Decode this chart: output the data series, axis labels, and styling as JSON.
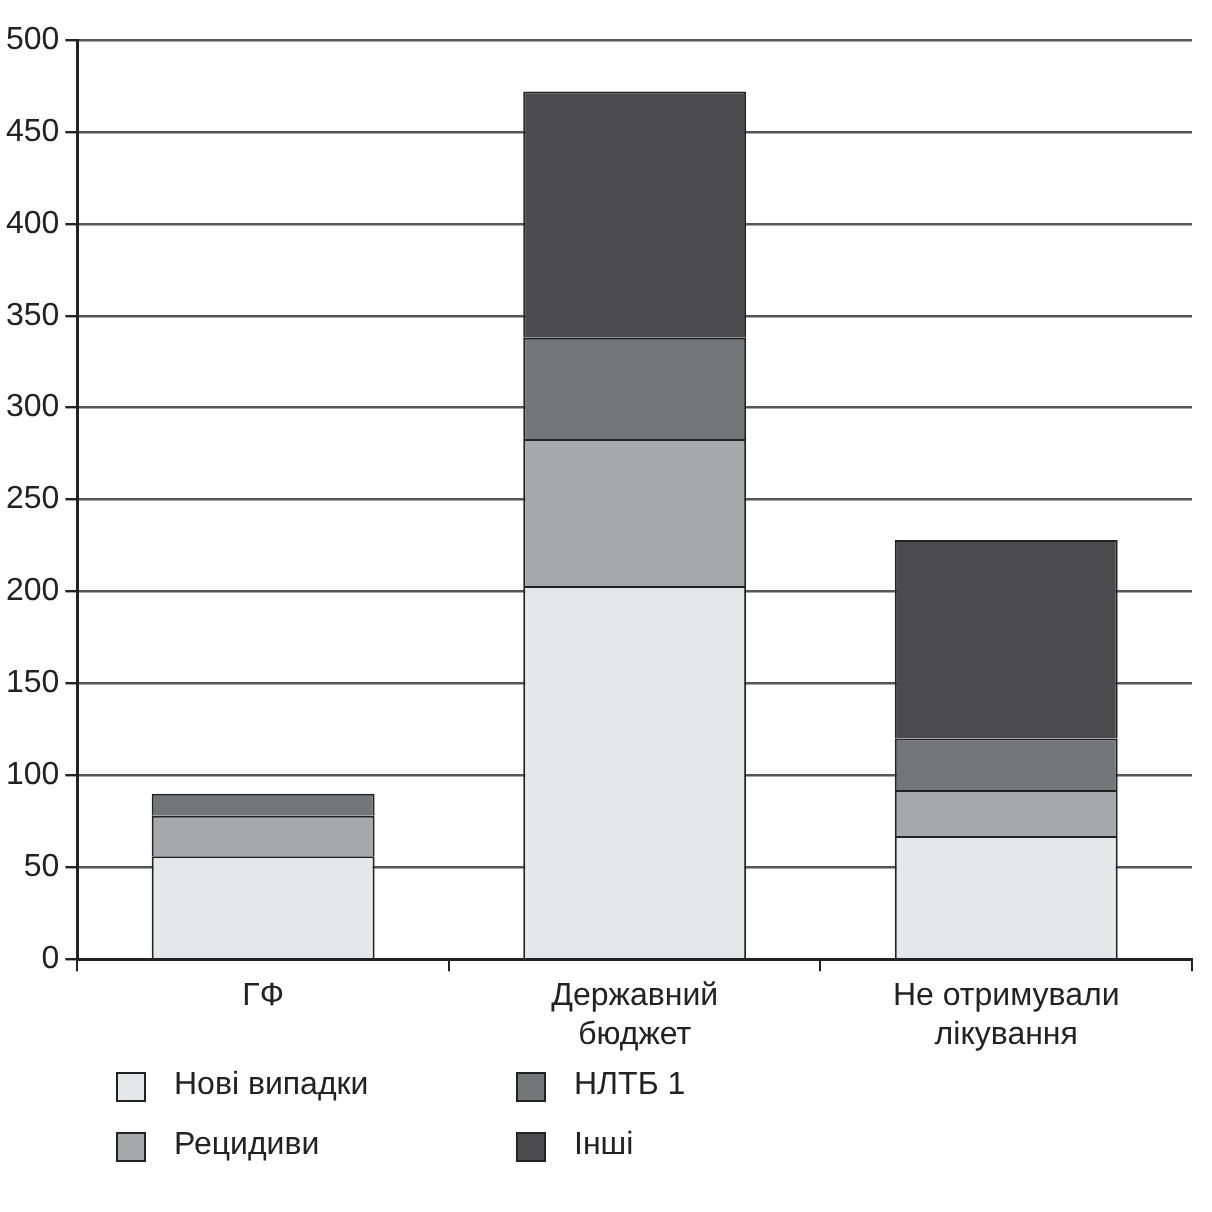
{
  "chart_data": {
    "type": "bar",
    "stacked": true,
    "categories": [
      "ГФ",
      "Державний бюджет",
      "Не отримували лікування"
    ],
    "series": [
      {
        "name": "Нові випадки",
        "color": "#e6e7e8",
        "values": [
          56,
          203,
          67
        ]
      },
      {
        "name": "Рецидиви",
        "color": "#a7a8ab",
        "values": [
          22,
          80,
          25
        ]
      },
      {
        "name": "НЛТБ 1",
        "color": "#747578",
        "values": [
          12,
          55,
          28
        ]
      },
      {
        "name": "Інші",
        "color": "#4b4b4d",
        "values": [
          0,
          134,
          108
        ]
      }
    ],
    "ylim": [
      0,
      500
    ],
    "yticks": [
      0,
      50,
      100,
      150,
      200,
      250,
      300,
      350,
      400,
      450,
      500
    ],
    "grid": "y",
    "legend": "bottom"
  }
}
